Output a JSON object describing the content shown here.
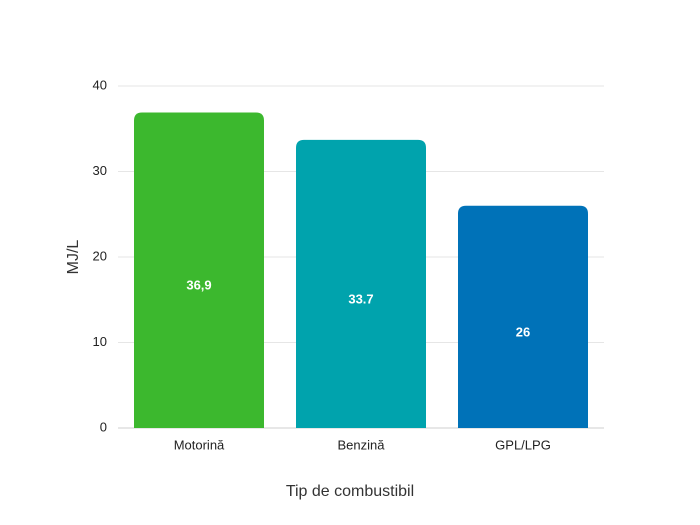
{
  "chart_data": {
    "type": "bar",
    "categories": [
      "Motorină",
      "Benzină",
      "GPL/LPG"
    ],
    "values": [
      36.9,
      33.7,
      26
    ],
    "value_labels": [
      "36,9",
      "33.7",
      "26"
    ],
    "colors": [
      "#3cb82e",
      "#00a3ad",
      "#0072b8"
    ],
    "title": "",
    "xlabel": "Tip de combustibil",
    "ylabel": "MJ/L",
    "ylim": [
      0,
      40
    ],
    "yticks": [
      "0",
      "10",
      "20",
      "30",
      "40"
    ],
    "grid": true,
    "legend": "none"
  }
}
